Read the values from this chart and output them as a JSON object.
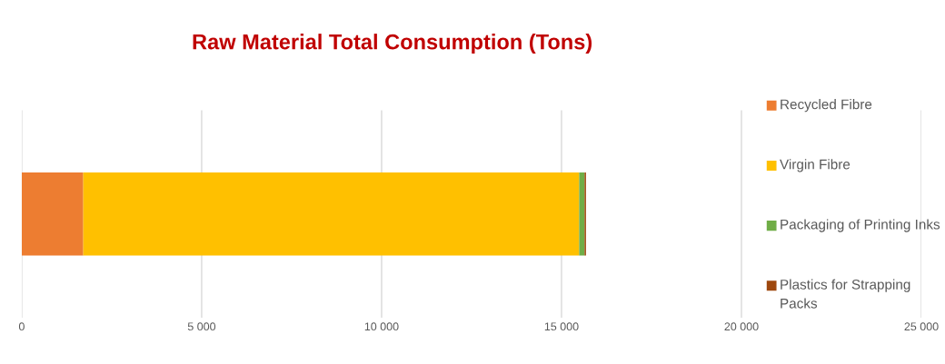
{
  "chart_data": {
    "type": "bar",
    "orientation": "horizontal",
    "stacked": true,
    "title": "Raw Material Total Consumption (Tons)",
    "categories": [
      null
    ],
    "series": [
      {
        "name": "Recycled Fibre",
        "color": "#ed7d31",
        "values": [
          1710
        ]
      },
      {
        "name": "Virgin Fibre",
        "color": "#ffc000",
        "values": [
          13780
        ]
      },
      {
        "name": "Packaging of Printing Inks",
        "color": "#70ad47",
        "values": [
          150
        ]
      },
      {
        "name": "Plastics for Strapping Packs",
        "color": "#9e480e",
        "values": [
          40
        ]
      }
    ],
    "xlim": [
      0,
      25000
    ],
    "xticks": [
      0,
      {
        "value": 5000,
        "label": "5 000"
      },
      {
        "value": 10000,
        "label": "10 000"
      },
      {
        "value": 15000,
        "label": "15 000"
      },
      {
        "value": 20000,
        "label": "20 000"
      },
      {
        "value": 25000,
        "label": "25 000"
      }
    ],
    "grid": "x",
    "legend": "right",
    "tick_labels": "x"
  }
}
